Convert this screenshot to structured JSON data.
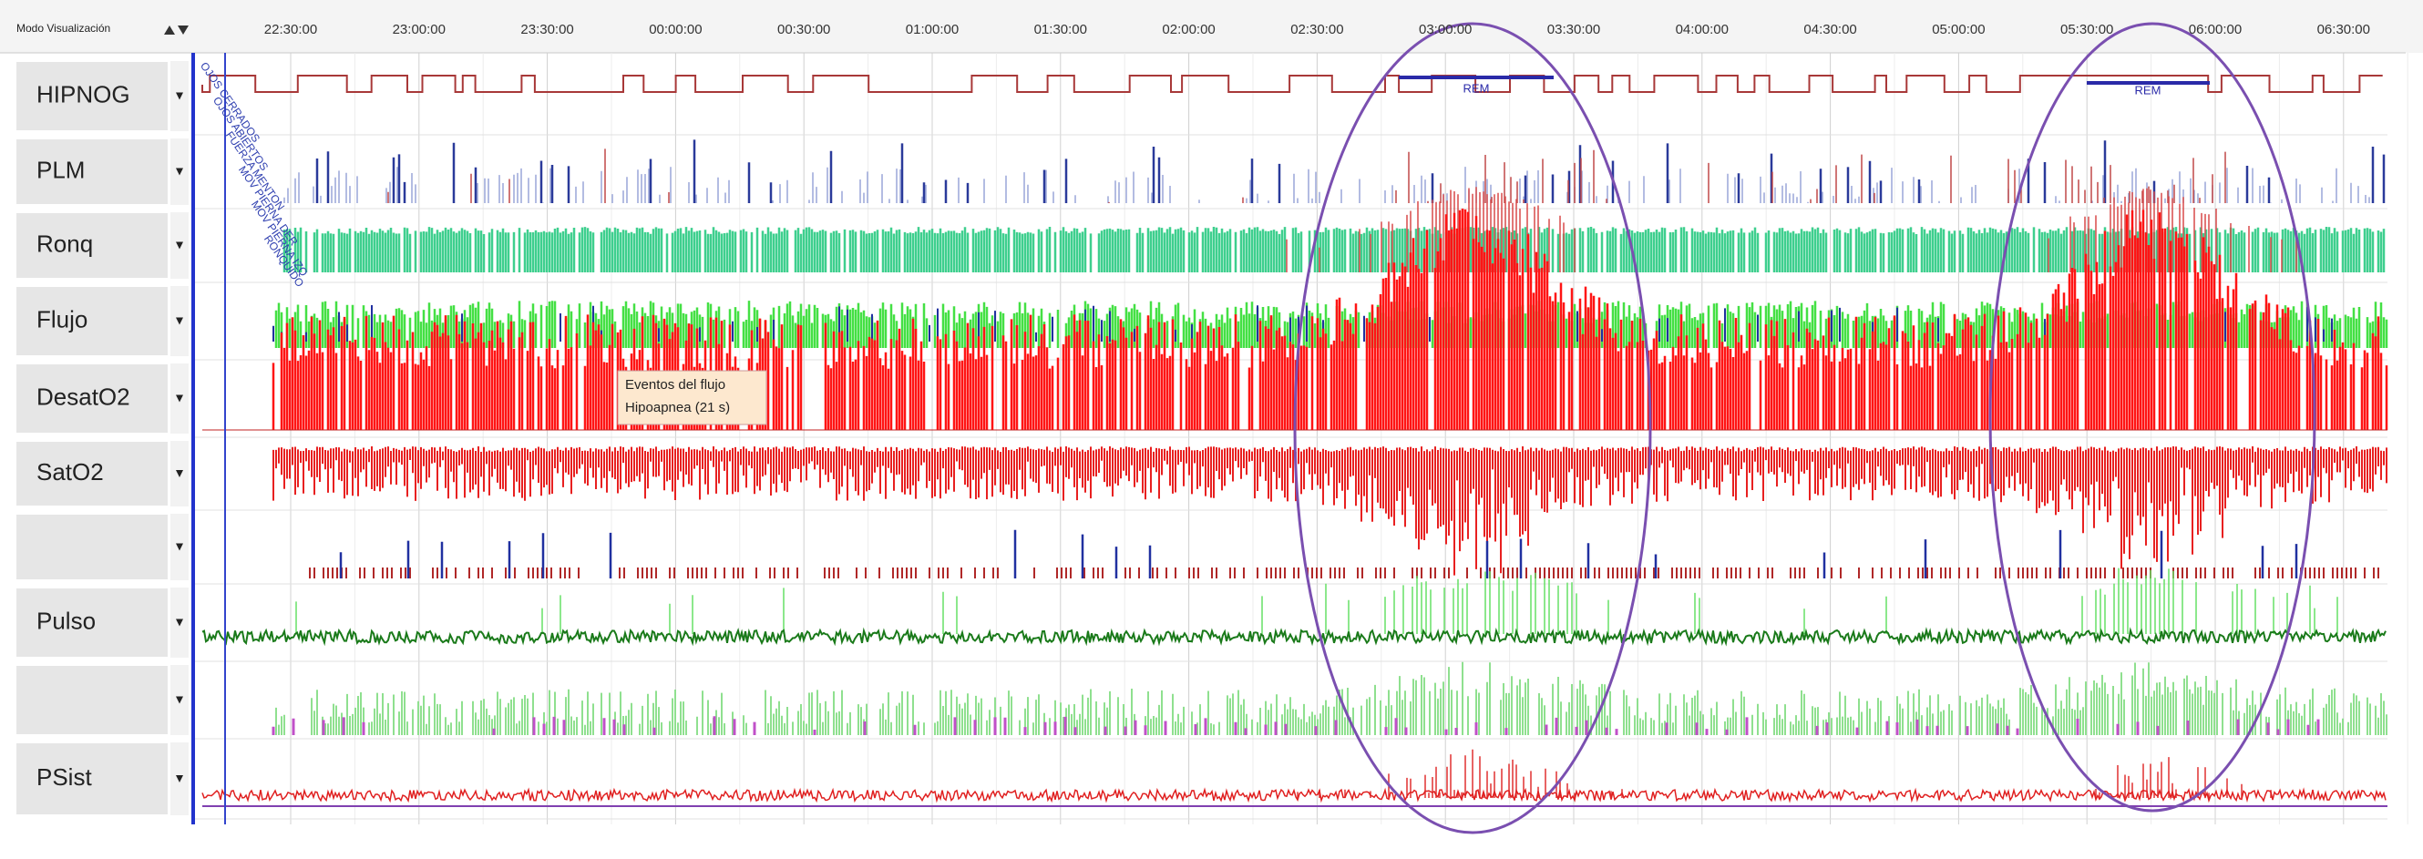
{
  "toolbar": {
    "mode_label": "Modo Visualización"
  },
  "timeline": {
    "ticks": [
      "22:30:00",
      "23:00:00",
      "23:30:00",
      "00:00:00",
      "00:30:00",
      "01:00:00",
      "01:30:00",
      "02:00:00",
      "02:30:00",
      "03:00:00",
      "03:30:00",
      "04:00:00",
      "04:30:00",
      "05:00:00",
      "05:30:00",
      "06:00:00",
      "06:30:00"
    ]
  },
  "channels": [
    "HIPNOG",
    "PLM",
    "Ronq",
    "Flujo",
    "DesatO2",
    "SatO2",
    null,
    "Pulso",
    null,
    "PSist"
  ],
  "annotations": {
    "rem_labels": [
      "REM",
      "REM"
    ],
    "tooltip": [
      "Eventos del flujo",
      "Hipoapnea (21 s)"
    ],
    "event_labels": [
      "OJOS CERRADOS",
      "OJOS ABIERTOS",
      "FUERZA MENTON",
      "MOV PIERNA DER",
      "MOV PIERNA IZQ",
      "RONQUIDO"
    ]
  }
}
